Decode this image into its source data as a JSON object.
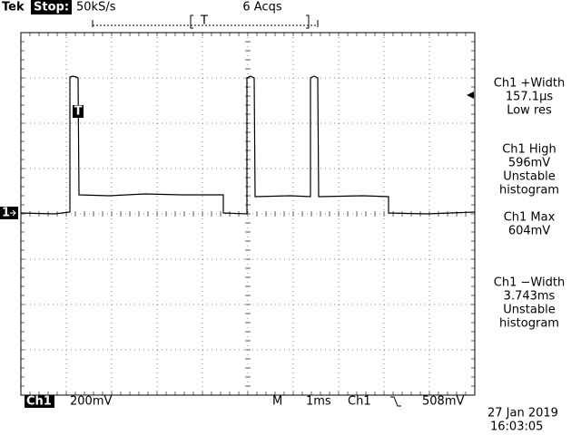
{
  "header": {
    "brand": "Tek",
    "state": "Stop:",
    "sample_rate": "50kS/s",
    "acquisitions": "6 Acqs",
    "trigger_position": "T"
  },
  "markers": {
    "trigger": "T",
    "channel": "1"
  },
  "measurements": [
    {
      "lines": [
        "Ch1 +Width",
        "157.1µs",
        "Low res"
      ]
    },
    {
      "lines": [
        "Ch1 High",
        "596mV",
        "Unstable",
        "histogram"
      ]
    },
    {
      "lines": [
        "Ch1 Max",
        "604mV"
      ]
    },
    {
      "lines": [
        "Ch1 −Width",
        "3.743ms",
        "Unstable",
        "histogram"
      ]
    }
  ],
  "footer": {
    "channel": "Ch1",
    "scale": "200mV",
    "mode": "M",
    "timebase": "1ms",
    "trigger_source": "Ch1",
    "trigger_level": "508mV",
    "date": "27 Jan 2019",
    "time": "16:03:05"
  }
}
